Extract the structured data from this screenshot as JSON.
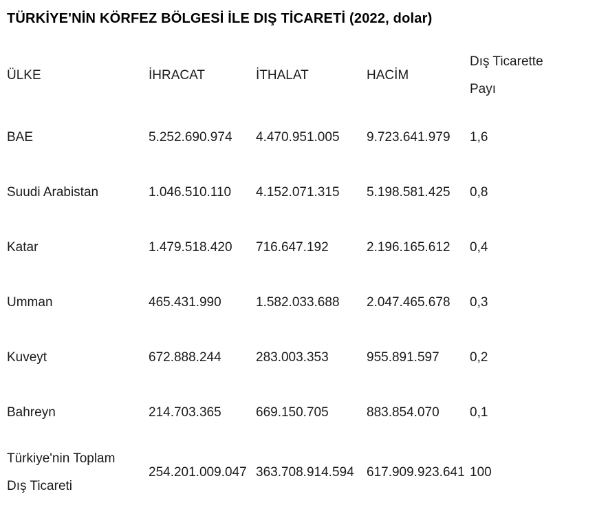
{
  "title": "TÜRKİYE'NİN KÖRFEZ BÖLGESİ İLE DIŞ TİCARETİ (2022, dolar)",
  "table": {
    "headers": {
      "ulke": "ÜLKE",
      "ihracat": "İHRACAT",
      "ithalat": "İTHALAT",
      "hacim": "HACİM",
      "pay": "Dış Ticarette Payı"
    },
    "rows": [
      {
        "ulke": "BAE",
        "ihracat": "5.252.690.974",
        "ithalat": "4.470.951.005",
        "hacim": "9.723.641.979",
        "pay": "1,6"
      },
      {
        "ulke": "Suudi Arabistan",
        "ihracat": "1.046.510.110",
        "ithalat": "4.152.071.315",
        "hacim": "5.198.581.425",
        "pay": "0,8"
      },
      {
        "ulke": "Katar",
        "ihracat": "1.479.518.420",
        "ithalat": "716.647.192",
        "hacim": "2.196.165.612",
        "pay": "0,4"
      },
      {
        "ulke": "Umman",
        "ihracat": "465.431.990",
        "ithalat": "1.582.033.688",
        "hacim": "2.047.465.678",
        "pay": "0,3"
      },
      {
        "ulke": "Kuveyt",
        "ihracat": "672.888.244",
        "ithalat": "283.003.353",
        "hacim": "955.891.597",
        "pay": "0,2"
      },
      {
        "ulke": "Bahreyn",
        "ihracat": "214.703.365",
        "ithalat": "669.150.705",
        "hacim": "883.854.070",
        "pay": "0,1"
      },
      {
        "ulke": "Türkiye'nin Toplam Dış Ticareti",
        "ihracat": "254.201.009.047",
        "ithalat": "363.708.914.594",
        "hacim": "617.909.923.641",
        "pay": "100"
      }
    ]
  },
  "chart_data": {
    "type": "table",
    "title": "TÜRKİYE'NİN KÖRFEZ BÖLGESİ İLE DIŞ TİCARETİ (2022, dolar)",
    "unit": "dolar",
    "year": "2022",
    "columns": [
      "ÜLKE",
      "İHRACAT",
      "İTHALAT",
      "HACİM",
      "Dış Ticarette Payı"
    ],
    "rows": [
      [
        "BAE",
        5252690974,
        4470951005,
        9723641979,
        1.6
      ],
      [
        "Suudi Arabistan",
        1046510110,
        4152071315,
        5198581425,
        0.8
      ],
      [
        "Katar",
        1479518420,
        716647192,
        2196165612,
        0.4
      ],
      [
        "Umman",
        465431990,
        1582033688,
        2047465678,
        0.3
      ],
      [
        "Kuveyt",
        672888244,
        283003353,
        955891597,
        0.2
      ],
      [
        "Bahreyn",
        214703365,
        669150705,
        883854070,
        0.1
      ],
      [
        "Türkiye'nin Toplam Dış Ticareti",
        254201009047,
        363708914594,
        617909923641,
        100
      ]
    ]
  }
}
